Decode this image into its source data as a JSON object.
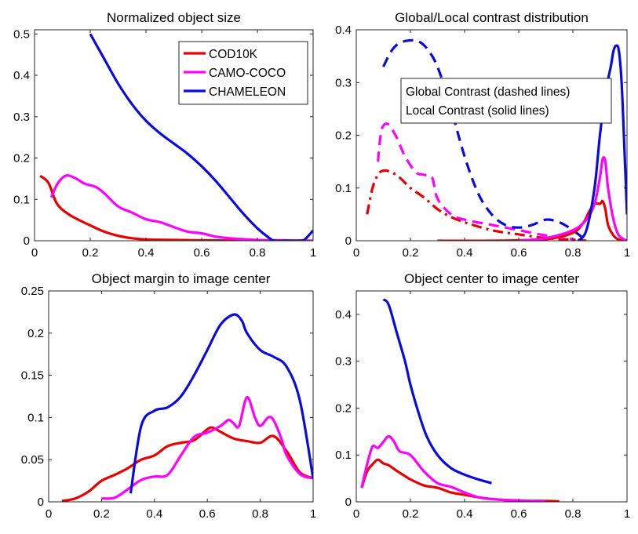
{
  "chart_data": [
    {
      "type": "line",
      "title": "Normalized object size",
      "xlim": [
        0,
        1
      ],
      "ylim": [
        0,
        0.51
      ],
      "xticks": [
        "0",
        "0.2",
        "0.4",
        "0.6",
        "0.8",
        "1"
      ],
      "yticks": [
        "0",
        "0.1",
        "0.2",
        "0.3",
        "0.4",
        "0.5"
      ],
      "legend": {
        "placement": "top-right",
        "entries": [
          {
            "label": "COD10K",
            "color": "#e60000"
          },
          {
            "label": "CAMO-COCO",
            "color": "#ff00ff"
          },
          {
            "label": "CHAMELEON",
            "color": "#0a0adc"
          }
        ]
      },
      "series": [
        {
          "name": "COD10K",
          "color": "#e60000",
          "style": "solid",
          "x": [
            0.02,
            0.05,
            0.08,
            0.12,
            0.16,
            0.2,
            0.25,
            0.3,
            0.35,
            0.4,
            0.5,
            0.6,
            0.7,
            0.8,
            0.9,
            1.0
          ],
          "y": [
            0.157,
            0.14,
            0.09,
            0.065,
            0.05,
            0.037,
            0.022,
            0.012,
            0.006,
            0.003,
            0.002,
            0.001,
            0.0005,
            0,
            0,
            0
          ]
        },
        {
          "name": "CAMO-COCO",
          "color": "#ff00ff",
          "style": "solid",
          "x": [
            0.06,
            0.08,
            0.1,
            0.12,
            0.15,
            0.18,
            0.22,
            0.25,
            0.3,
            0.35,
            0.4,
            0.45,
            0.5,
            0.55,
            0.6,
            0.65,
            0.7,
            0.8,
            0.9,
            1.0
          ],
          "y": [
            0.105,
            0.135,
            0.152,
            0.158,
            0.15,
            0.138,
            0.13,
            0.115,
            0.083,
            0.068,
            0.052,
            0.045,
            0.033,
            0.022,
            0.018,
            0.01,
            0.006,
            0.002,
            0.001,
            0
          ]
        },
        {
          "name": "CHAMELEON",
          "color": "#0a0adc",
          "style": "solid",
          "x": [
            0.2,
            0.25,
            0.3,
            0.35,
            0.4,
            0.45,
            0.5,
            0.55,
            0.6,
            0.65,
            0.7,
            0.75,
            0.8,
            0.84,
            0.86,
            0.9,
            0.95,
            0.97,
            1.0
          ],
          "y": [
            0.5,
            0.44,
            0.38,
            0.33,
            0.29,
            0.26,
            0.235,
            0.21,
            0.18,
            0.145,
            0.105,
            0.065,
            0.03,
            0.008,
            0,
            0,
            0,
            0.003,
            0.025
          ]
        }
      ]
    },
    {
      "type": "line",
      "title": "Global/Local contrast distribution",
      "xlim": [
        0,
        1
      ],
      "ylim": [
        0,
        0.4
      ],
      "xticks": [
        "0",
        "0.2",
        "0.4",
        "0.6",
        "0.8",
        "1"
      ],
      "yticks": [
        "0",
        "0.1",
        "0.2",
        "0.3",
        "0.4"
      ],
      "annotation": [
        "Global Contrast (dashed lines)",
        "Local Contrast (solid lines)"
      ],
      "series": [
        {
          "name": "COD10K global",
          "color": "#e60000",
          "style": "dashdot",
          "x": [
            0.04,
            0.06,
            0.08,
            0.1,
            0.13,
            0.16,
            0.2,
            0.25,
            0.3,
            0.35,
            0.4,
            0.5,
            0.6,
            0.7,
            0.8,
            0.85
          ],
          "y": [
            0.05,
            0.1,
            0.125,
            0.133,
            0.13,
            0.12,
            0.1,
            0.082,
            0.06,
            0.045,
            0.035,
            0.02,
            0.012,
            0.005,
            0.002,
            0
          ]
        },
        {
          "name": "CAMO-COCO global",
          "color": "#ff00ff",
          "style": "dashed",
          "x": [
            0.08,
            0.09,
            0.1,
            0.12,
            0.15,
            0.18,
            0.22,
            0.25,
            0.28,
            0.3,
            0.35,
            0.4,
            0.5,
            0.6,
            0.7,
            0.8
          ],
          "y": [
            0.15,
            0.2,
            0.218,
            0.22,
            0.195,
            0.16,
            0.13,
            0.125,
            0.12,
            0.08,
            0.05,
            0.04,
            0.03,
            0.02,
            0.01,
            0.003
          ]
        },
        {
          "name": "CHAMELEON global",
          "color": "#0a0adc",
          "style": "dashed",
          "x": [
            0.1,
            0.13,
            0.16,
            0.2,
            0.23,
            0.26,
            0.3,
            0.35,
            0.4,
            0.45,
            0.5,
            0.55,
            0.6,
            0.65,
            0.7,
            0.75,
            0.8,
            0.85
          ],
          "y": [
            0.33,
            0.36,
            0.375,
            0.38,
            0.378,
            0.365,
            0.33,
            0.25,
            0.16,
            0.09,
            0.05,
            0.03,
            0.025,
            0.03,
            0.04,
            0.035,
            0.02,
            0
          ]
        },
        {
          "name": "COD10K local",
          "color": "#e60000",
          "style": "solid",
          "x": [
            0.3,
            0.5,
            0.7,
            0.8,
            0.84,
            0.86,
            0.88,
            0.9,
            0.91,
            0.92,
            0.93,
            0.95,
            0.97,
            1.0
          ],
          "y": [
            0,
            0,
            0.003,
            0.015,
            0.035,
            0.055,
            0.07,
            0.07,
            0.075,
            0.06,
            0.03,
            0.01,
            0.002,
            0
          ]
        },
        {
          "name": "CAMO-COCO local",
          "color": "#ff00ff",
          "style": "solid",
          "x": [
            0.6,
            0.7,
            0.8,
            0.85,
            0.88,
            0.9,
            0.91,
            0.92,
            0.93,
            0.95,
            0.97,
            1.0
          ],
          "y": [
            0,
            0.005,
            0.02,
            0.04,
            0.07,
            0.12,
            0.155,
            0.15,
            0.1,
            0.04,
            0.01,
            0
          ]
        },
        {
          "name": "CHAMELEON local",
          "color": "#0a0adc",
          "style": "solid",
          "x": [
            0.82,
            0.85,
            0.88,
            0.9,
            0.92,
            0.94,
            0.95,
            0.96,
            0.97,
            0.98,
            0.99,
            1.0
          ],
          "y": [
            0,
            0.02,
            0.1,
            0.2,
            0.28,
            0.33,
            0.36,
            0.37,
            0.36,
            0.3,
            0.18,
            0.05
          ]
        }
      ]
    },
    {
      "type": "line",
      "title": "Object margin to image center",
      "xlim": [
        0,
        1
      ],
      "ylim": [
        0,
        0.25
      ],
      "xticks": [
        "0",
        "0.2",
        "0.4",
        "0.6",
        "0.8",
        "1"
      ],
      "yticks": [
        "0",
        "0.05",
        "0.1",
        "0.15",
        "0.2",
        "0.25"
      ],
      "series": [
        {
          "name": "COD10K",
          "color": "#e60000",
          "style": "solid",
          "x": [
            0.05,
            0.1,
            0.15,
            0.2,
            0.25,
            0.3,
            0.35,
            0.4,
            0.45,
            0.5,
            0.55,
            0.6,
            0.62,
            0.65,
            0.7,
            0.75,
            0.8,
            0.85,
            0.9,
            0.95,
            1.0
          ],
          "y": [
            0.001,
            0.004,
            0.012,
            0.025,
            0.032,
            0.04,
            0.05,
            0.055,
            0.066,
            0.07,
            0.073,
            0.086,
            0.088,
            0.083,
            0.075,
            0.072,
            0.07,
            0.078,
            0.06,
            0.035,
            0.028
          ]
        },
        {
          "name": "CAMO-COCO",
          "color": "#ff00ff",
          "style": "solid",
          "x": [
            0.2,
            0.25,
            0.3,
            0.35,
            0.4,
            0.45,
            0.5,
            0.55,
            0.6,
            0.65,
            0.68,
            0.7,
            0.72,
            0.75,
            0.78,
            0.8,
            0.83,
            0.85,
            0.88,
            0.9,
            0.95,
            1.0
          ],
          "y": [
            0.004,
            0.005,
            0.015,
            0.026,
            0.03,
            0.032,
            0.055,
            0.077,
            0.082,
            0.09,
            0.097,
            0.093,
            0.09,
            0.124,
            0.1,
            0.09,
            0.1,
            0.097,
            0.075,
            0.055,
            0.033,
            0.028
          ]
        },
        {
          "name": "CHAMELEON",
          "color": "#0a0adc",
          "style": "solid",
          "x": [
            0.31,
            0.35,
            0.4,
            0.45,
            0.5,
            0.55,
            0.6,
            0.65,
            0.7,
            0.73,
            0.75,
            0.8,
            0.85,
            0.9,
            0.95,
            1.0
          ],
          "y": [
            0.01,
            0.09,
            0.108,
            0.112,
            0.125,
            0.15,
            0.18,
            0.21,
            0.222,
            0.215,
            0.2,
            0.18,
            0.172,
            0.16,
            0.12,
            0.028
          ]
        }
      ]
    },
    {
      "type": "line",
      "title": "Object center to image center",
      "xlim": [
        0,
        1
      ],
      "ylim": [
        0,
        0.45
      ],
      "xticks": [
        "0",
        "0.2",
        "0.4",
        "0.6",
        "0.8",
        "1"
      ],
      "yticks": [
        "0",
        "0.1",
        "0.2",
        "0.3",
        "0.4"
      ],
      "series": [
        {
          "name": "COD10K",
          "color": "#e60000",
          "style": "solid",
          "x": [
            0.02,
            0.04,
            0.06,
            0.08,
            0.1,
            0.12,
            0.15,
            0.18,
            0.2,
            0.25,
            0.3,
            0.35,
            0.4,
            0.45,
            0.5,
            0.55,
            0.6,
            0.65,
            0.7,
            0.75
          ],
          "y": [
            0.03,
            0.065,
            0.08,
            0.09,
            0.082,
            0.078,
            0.066,
            0.055,
            0.048,
            0.035,
            0.03,
            0.02,
            0.015,
            0.01,
            0.006,
            0.004,
            0.002,
            0.002,
            0.002,
            0.001
          ]
        },
        {
          "name": "CAMO-COCO",
          "color": "#ff00ff",
          "style": "solid",
          "x": [
            0.02,
            0.04,
            0.06,
            0.08,
            0.1,
            0.12,
            0.14,
            0.16,
            0.2,
            0.25,
            0.3,
            0.35,
            0.4,
            0.45,
            0.5,
            0.55,
            0.6,
            0.65,
            0.7
          ],
          "y": [
            0.03,
            0.08,
            0.118,
            0.115,
            0.128,
            0.14,
            0.128,
            0.108,
            0.1,
            0.065,
            0.04,
            0.032,
            0.02,
            0.01,
            0.006,
            0.004,
            0.003,
            0.002,
            0.001
          ]
        },
        {
          "name": "CHAMELEON",
          "color": "#0a0adc",
          "style": "solid",
          "x": [
            0.1,
            0.12,
            0.15,
            0.18,
            0.2,
            0.23,
            0.26,
            0.3,
            0.35,
            0.4,
            0.45,
            0.5
          ],
          "y": [
            0.432,
            0.42,
            0.36,
            0.3,
            0.25,
            0.19,
            0.14,
            0.1,
            0.072,
            0.058,
            0.048,
            0.04
          ]
        }
      ]
    }
  ]
}
